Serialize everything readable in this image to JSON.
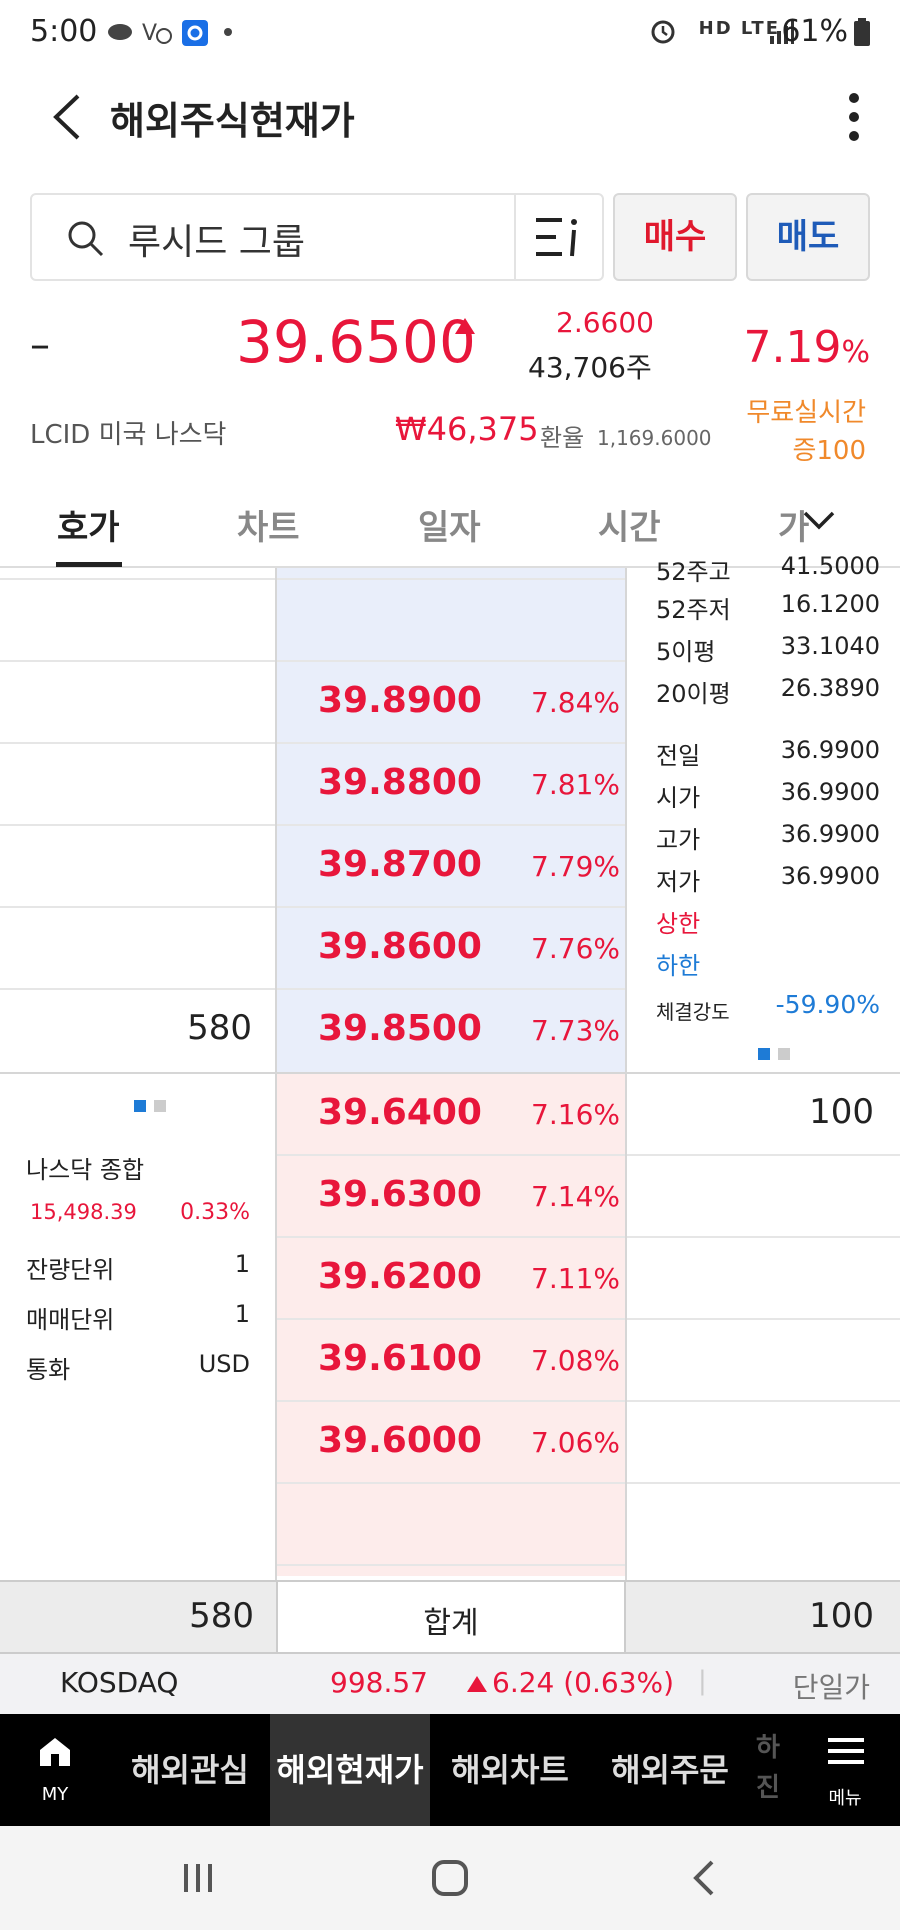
{
  "status_bar": {
    "time": "5:00",
    "right_icons": "HD LTE",
    "battery": "61%"
  },
  "header": {
    "title": "해외주식현재가"
  },
  "search": {
    "stock_name": "루시드 그룹",
    "buy_label": "매수",
    "sell_label": "매도"
  },
  "quote": {
    "dash": "–",
    "price": "39.6500",
    "change": "2.6600",
    "volume": "43,706주",
    "change_pct": "7.19",
    "pct_sign": "%",
    "ticker_market": "LCID  미국 나스닥",
    "krw_price": "₩46,375",
    "fx_label": "환율",
    "fx_value": "1,169.6000",
    "free_realtime_line1": "무료실시간",
    "free_realtime_line2": "증100"
  },
  "tabs": [
    {
      "label": "호가",
      "active": true
    },
    {
      "label": "차트",
      "active": false
    },
    {
      "label": "일자",
      "active": false
    },
    {
      "label": "시간",
      "active": false
    },
    {
      "label": "가",
      "active": false
    }
  ],
  "asks": [
    {
      "price": "39.8900",
      "pct": "7.84%",
      "qty": ""
    },
    {
      "price": "39.8800",
      "pct": "7.81%",
      "qty": ""
    },
    {
      "price": "39.8700",
      "pct": "7.79%",
      "qty": ""
    },
    {
      "price": "39.8600",
      "pct": "7.76%",
      "qty": ""
    },
    {
      "price": "39.8500",
      "pct": "7.73%",
      "qty": "580"
    }
  ],
  "bids": [
    {
      "price": "39.6400",
      "pct": "7.16%",
      "qty": "100"
    },
    {
      "price": "39.6300",
      "pct": "7.14%",
      "qty": ""
    },
    {
      "price": "39.6200",
      "pct": "7.11%",
      "qty": ""
    },
    {
      "price": "39.6100",
      "pct": "7.08%",
      "qty": ""
    },
    {
      "price": "39.6000",
      "pct": "7.06%",
      "qty": ""
    }
  ],
  "stock_info": {
    "cut_label": "52주고",
    "cut_value": "41.5000",
    "rows_a": [
      {
        "label": "52주저",
        "value": "16.1200"
      },
      {
        "label": "5이평",
        "value": "33.1040"
      },
      {
        "label": "20이평",
        "value": "26.3890"
      }
    ],
    "rows_b": [
      {
        "label": "전일",
        "value": "36.9900"
      },
      {
        "label": "시가",
        "value": "36.9900"
      },
      {
        "label": "고가",
        "value": "36.9900"
      },
      {
        "label": "저가",
        "value": "36.9900"
      }
    ],
    "upper_limit_label": "상한",
    "lower_limit_label": "하한",
    "strength_label": "체결강도",
    "strength_value": "-59.90%"
  },
  "market_info": {
    "index_name": "나스닥 종합",
    "index_value": "15,498.39",
    "index_pct": "0.33%",
    "rows": [
      {
        "label": "잔량단위",
        "value": "1"
      },
      {
        "label": "매매단위",
        "value": "1"
      },
      {
        "label": "통화",
        "value": "USD"
      }
    ]
  },
  "totals": {
    "ask_total": "580",
    "label": "합계",
    "bid_total": "100"
  },
  "market_ticker": {
    "name": "KOSDAQ",
    "value": "998.57",
    "change": "6.24 (0.63%)",
    "sep": "|",
    "single_price_label": "단일가"
  },
  "bottom_nav": {
    "home_label": "MY",
    "items": [
      "해외관심",
      "해외현재가",
      "해외차트",
      "해외주문"
    ],
    "partial_line1": "하",
    "partial_line2": "진",
    "menu_label": "메뉴"
  },
  "colors": {
    "up": "#e8163b",
    "down": "#1e7bd6",
    "ask_bg": "#e9eefa",
    "bid_bg": "#fdeceb",
    "orange": "#f0892b"
  }
}
